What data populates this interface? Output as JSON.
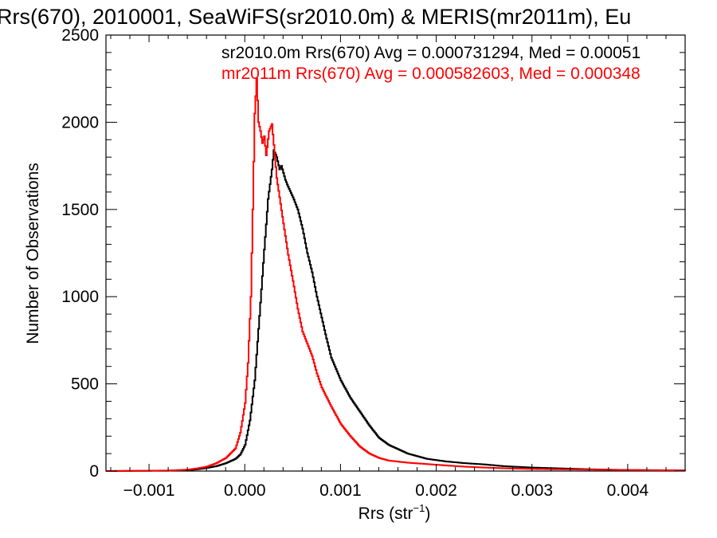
{
  "chart_data": {
    "type": "line",
    "title": "Rrs(670), 2010001, SeaWiFS(sr2010.0m) & MERIS(mr2011m), Eu",
    "xlabel": "Rrs (str",
    "xlabel_sup": "−1",
    "xlabel_close": ")",
    "ylabel": "Number of Observations",
    "xlim": [
      -0.00145,
      0.0046
    ],
    "ylim": [
      0,
      2500
    ],
    "x_ticks": [
      -0.001,
      0.0,
      0.001,
      0.002,
      0.003,
      0.004
    ],
    "x_tick_labels": [
      "−0.001",
      "0.000",
      "0.001",
      "0.002",
      "0.003",
      "0.004"
    ],
    "y_ticks": [
      0,
      500,
      1000,
      1500,
      2000,
      2500
    ],
    "y_tick_labels": [
      "0",
      "500",
      "1000",
      "1500",
      "2000",
      "2500"
    ],
    "grid": false,
    "series": [
      {
        "name": "sr2010.0m",
        "color": "#000000",
        "legend": "sr2010.0m Rrs(670) Avg = 0.000731294, Med = 0.00051",
        "points": [
          [
            -0.00145,
            0
          ],
          [
            -0.0008,
            2
          ],
          [
            -0.0006,
            5
          ],
          [
            -0.0005,
            10
          ],
          [
            -0.0004,
            18
          ],
          [
            -0.0003,
            28
          ],
          [
            -0.0002,
            45
          ],
          [
            -0.0001,
            70
          ],
          [
            -5e-05,
            95
          ],
          [
            0.0,
            150
          ],
          [
            5e-05,
            290
          ],
          [
            0.0001,
            520
          ],
          [
            0.00015,
            890
          ],
          [
            0.0002,
            1270
          ],
          [
            0.00024,
            1560
          ],
          [
            0.00028,
            1730
          ],
          [
            0.0003,
            1840
          ],
          [
            0.00033,
            1800
          ],
          [
            0.00036,
            1730
          ],
          [
            0.00038,
            1750
          ],
          [
            0.00042,
            1670
          ],
          [
            0.00045,
            1630
          ],
          [
            0.0005,
            1570
          ],
          [
            0.00055,
            1500
          ],
          [
            0.0006,
            1390
          ],
          [
            0.00065,
            1250
          ],
          [
            0.0007,
            1140
          ],
          [
            0.00075,
            1000
          ],
          [
            0.0008,
            880
          ],
          [
            0.00085,
            760
          ],
          [
            0.0009,
            650
          ],
          [
            0.001,
            520
          ],
          [
            0.0011,
            420
          ],
          [
            0.0012,
            340
          ],
          [
            0.0013,
            260
          ],
          [
            0.0014,
            190
          ],
          [
            0.0015,
            150
          ],
          [
            0.0017,
            100
          ],
          [
            0.0019,
            70
          ],
          [
            0.0021,
            55
          ],
          [
            0.0023,
            45
          ],
          [
            0.0025,
            38
          ],
          [
            0.0027,
            28
          ],
          [
            0.003,
            20
          ],
          [
            0.0033,
            15
          ],
          [
            0.0036,
            10
          ],
          [
            0.004,
            6
          ],
          [
            0.0046,
            3
          ]
        ]
      },
      {
        "name": "mr2011m",
        "color": "#ff0000",
        "legend": "mr2011m Rrs(670) Avg = 0.000582603, Med = 0.000348",
        "points": [
          [
            -0.00145,
            0
          ],
          [
            -0.0008,
            3
          ],
          [
            -0.0006,
            8
          ],
          [
            -0.0005,
            15
          ],
          [
            -0.0004,
            25
          ],
          [
            -0.0003,
            45
          ],
          [
            -0.0002,
            75
          ],
          [
            -0.0001,
            130
          ],
          [
            -5e-05,
            220
          ],
          [
            0.0,
            390
          ],
          [
            3e-05,
            620
          ],
          [
            6e-05,
            1000
          ],
          [
            8e-05,
            1500
          ],
          [
            0.0001,
            2050
          ],
          [
            0.00012,
            2250
          ],
          [
            0.00014,
            2000
          ],
          [
            0.00016,
            1950
          ],
          [
            0.00018,
            1880
          ],
          [
            0.0002,
            1920
          ],
          [
            0.00022,
            1810
          ],
          [
            0.00025,
            1950
          ],
          [
            0.00028,
            1990
          ],
          [
            0.0003,
            1870
          ],
          [
            0.00033,
            1680
          ],
          [
            0.00036,
            1570
          ],
          [
            0.0004,
            1420
          ],
          [
            0.00045,
            1240
          ],
          [
            0.0005,
            1090
          ],
          [
            0.00055,
            930
          ],
          [
            0.0006,
            800
          ],
          [
            0.00065,
            730
          ],
          [
            0.0007,
            660
          ],
          [
            0.00075,
            560
          ],
          [
            0.0008,
            480
          ],
          [
            0.0009,
            370
          ],
          [
            0.001,
            270
          ],
          [
            0.0011,
            200
          ],
          [
            0.0012,
            140
          ],
          [
            0.0013,
            100
          ],
          [
            0.0014,
            75
          ],
          [
            0.0015,
            60
          ],
          [
            0.0017,
            48
          ],
          [
            0.0019,
            40
          ],
          [
            0.0021,
            32
          ],
          [
            0.0023,
            25
          ],
          [
            0.0025,
            20
          ],
          [
            0.0027,
            16
          ],
          [
            0.003,
            12
          ],
          [
            0.0033,
            10
          ],
          [
            0.0036,
            8
          ],
          [
            0.004,
            6
          ],
          [
            0.0046,
            4
          ]
        ]
      }
    ]
  }
}
